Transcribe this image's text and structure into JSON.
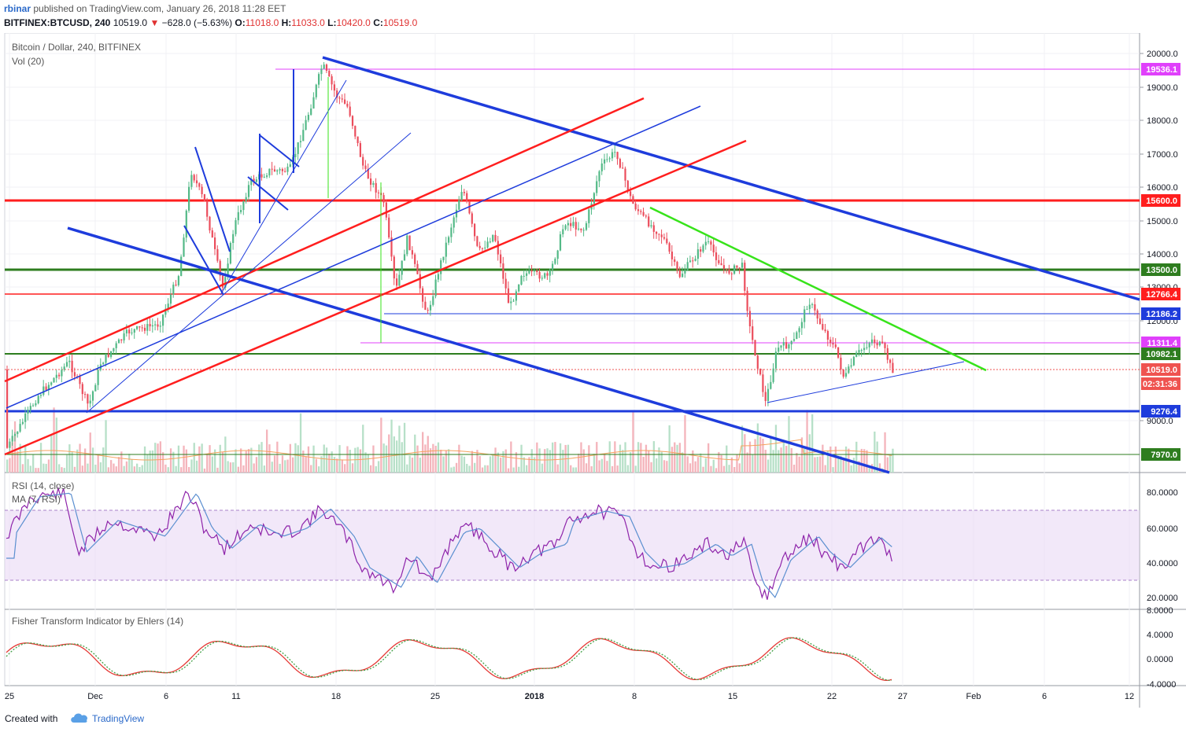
{
  "header": {
    "author": "rbinar",
    "published_text": "published on TradingView.com, January 26, 2018 11:28 EET",
    "symbol": "BITFINEX:BTCUSD, 240",
    "last": "10519.0",
    "change": "−628.0 (−5.63%)",
    "o_label": "O:",
    "o_value": "11018.0",
    "h_label": "H:",
    "h_value": "11033.0",
    "l_label": "L:",
    "l_value": "10420.0",
    "c_label": "C:",
    "c_value": "10519.0"
  },
  "chart": {
    "title": "Bitcoin / Dollar, 240, BITFINEX",
    "volume_label": "Vol (20)",
    "y_ticks": [
      "20000.0",
      "19000.0",
      "18000.0",
      "17000.0",
      "16000.0",
      "15000.0",
      "14000.0",
      "13000.0",
      "12000.0",
      "9000.0"
    ],
    "price_tags": [
      {
        "text": "19536.1",
        "color": "#e040fb"
      },
      {
        "text": "15600.0",
        "color": "#ff1e1e"
      },
      {
        "text": "13500.0",
        "color": "#2e7d1f"
      },
      {
        "text": "12766.4",
        "color": "#ff1e1e"
      },
      {
        "text": "12186.2",
        "color": "#1e3cdc"
      },
      {
        "text": "11311.4",
        "color": "#e040fb"
      },
      {
        "text": "10982.1",
        "color": "#2e7d1f"
      },
      {
        "text": "10519.0",
        "color": "#ef5350"
      },
      {
        "text": "02:31:36",
        "color": "#ef5350"
      },
      {
        "text": "9276.4",
        "color": "#1e3cdc"
      },
      {
        "text": "7970.0",
        "color": "#2e7d1f"
      }
    ]
  },
  "rsi": {
    "title": "RSI (14, close)",
    "ma_title": "MA (7, RSI)",
    "ticks": [
      "80.0000",
      "60.0000",
      "40.0000",
      "20.0000"
    ]
  },
  "fisher": {
    "title": "Fisher Transform Indicator by Ehlers (14)",
    "ticks": [
      "8.0000",
      "4.0000",
      "0.0000",
      "-4.0000"
    ]
  },
  "x_axis": {
    "labels": [
      "25",
      "Dec",
      "6",
      "11",
      "18",
      "25",
      "2018",
      "8",
      "15",
      "22",
      "27",
      "Feb",
      "6",
      "12"
    ]
  },
  "footer": {
    "created_with": "Created with",
    "brand": "TradingView"
  },
  "colors": {
    "up": "#53b987",
    "down": "#eb4d5c",
    "blue": "#1e3cdc",
    "red": "#ff1e1e",
    "green_line": "#2e7d1f",
    "lime": "#37e31a",
    "magenta": "#e040fb",
    "rsi": "#8e24aa"
  }
}
